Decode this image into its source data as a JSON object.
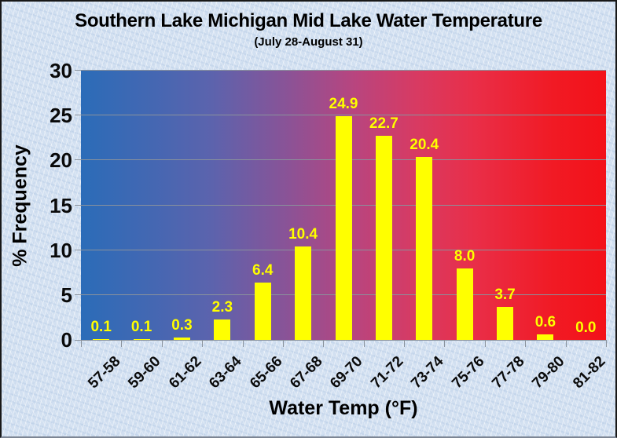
{
  "header": {
    "title": "Southern Lake Michigan Mid Lake Water Temperature",
    "subtitle": "(July 28-August 31)"
  },
  "chart_data": {
    "type": "bar",
    "title": "Southern Lake Michigan Mid Lake Water Temperature",
    "subtitle": "(July 28-August 31)",
    "categories": [
      "57-58",
      "59-60",
      "61-62",
      "63-64",
      "65-66",
      "67-68",
      "69-70",
      "71-72",
      "73-74",
      "75-76",
      "77-78",
      "79-80",
      "81-82"
    ],
    "values": [
      0.1,
      0.1,
      0.3,
      2.3,
      6.4,
      10.4,
      24.9,
      22.7,
      20.4,
      8.0,
      3.7,
      0.6,
      0.0
    ],
    "data_labels": [
      "0.1",
      "0.1",
      "0.3",
      "2.3",
      "6.4",
      "10.4",
      "24.9",
      "22.7",
      "20.4",
      "8.0",
      "3.7",
      "0.6",
      "0.0"
    ],
    "xlabel": "Water Temp (°F)",
    "ylabel": "% Frequency",
    "ylim": [
      0,
      30
    ],
    "yticks": [
      0,
      5,
      10,
      15,
      20,
      25,
      30
    ],
    "grid": true,
    "legend": false,
    "colors": {
      "bar": "#ffff00",
      "data_label": "#ffff00",
      "gridline": "#8a929c",
      "text": "#000000",
      "plot_gradient": [
        "#2b6cb8",
        "#5c63ad",
        "#b8457f",
        "#e92e48",
        "#f31119"
      ],
      "page_background": "#d2e0f1"
    }
  }
}
